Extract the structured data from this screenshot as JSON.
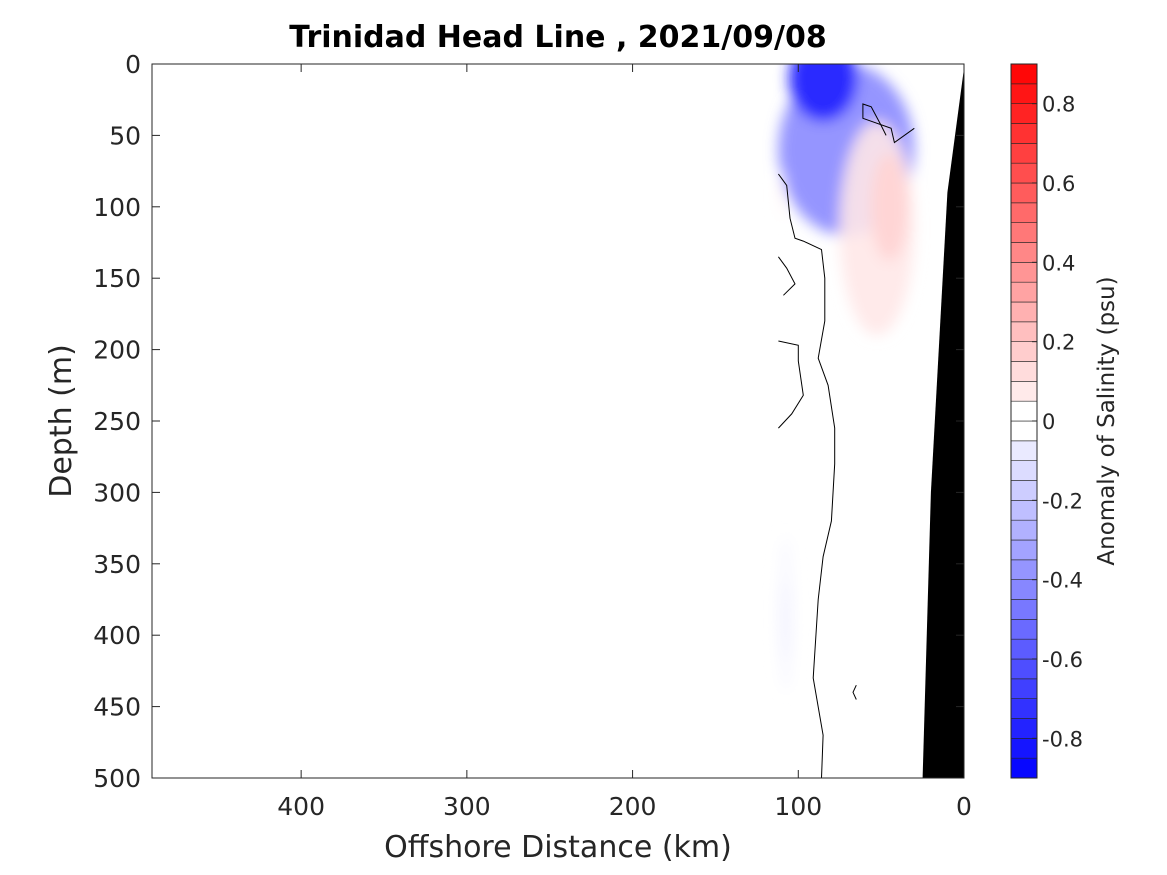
{
  "chart_data": {
    "type": "heatmap",
    "title": "Trinidad Head Line , 2021/09/08",
    "xlabel": "Offshore Distance (km)",
    "ylabel": "Depth (m)",
    "xlim": [
      490,
      0
    ],
    "ylim": [
      0,
      500
    ],
    "x_reversed": true,
    "y_reversed": true,
    "xticks": [
      400,
      300,
      200,
      100,
      0
    ],
    "xtick_labels": [
      "400",
      "300",
      "200",
      "100",
      "0"
    ],
    "yticks": [
      0,
      50,
      100,
      150,
      200,
      250,
      300,
      350,
      400,
      450,
      500
    ],
    "ytick_labels": [
      "0",
      "50",
      "100",
      "150",
      "200",
      "250",
      "300",
      "350",
      "400",
      "450",
      "500"
    ],
    "colorbar": {
      "label": "Anomaly of Salinity (psu)",
      "range": [
        -0.9,
        0.9
      ],
      "level_step": 0.05,
      "ticks": [
        0.8,
        0.6,
        0.4,
        0.2,
        0,
        -0.2,
        -0.4,
        -0.6,
        -0.8
      ],
      "tick_labels": [
        "0.8",
        "0.6",
        "0.4",
        "0.2",
        "0",
        "-0.2",
        "-0.4",
        "-0.6",
        "-0.8"
      ],
      "colormap": "blue-white-red",
      "low_color": "#0000ff",
      "high_color": "#ff0000"
    },
    "regions": [
      {
        "name": "surface fresh anomaly",
        "sign": "negative",
        "x_range_km": [
          30,
          112
        ],
        "depth_range_m": [
          0,
          120
        ],
        "peak_value": -0.75,
        "peak_location": {
          "x_km": 85,
          "depth_m": 10
        }
      },
      {
        "name": "subsurface salty anomaly",
        "sign": "positive",
        "x_range_km": [
          30,
          75
        ],
        "depth_range_m": [
          40,
          190
        ],
        "peak_value": 0.15,
        "peak_location": {
          "x_km": 45,
          "depth_m": 100
        }
      },
      {
        "name": "weak nearshore salty patch",
        "sign": "positive",
        "x_range_km": [
          108,
          112
        ],
        "depth_range_m": [
          75,
          110
        ],
        "peak_value": 0.05,
        "peak_location": {
          "x_km": 110,
          "depth_m": 90
        }
      },
      {
        "name": "deep weak fresh patch",
        "sign": "negative",
        "x_range_km": [
          103,
          112
        ],
        "depth_range_m": [
          330,
          440
        ],
        "peak_value": -0.05,
        "peak_location": {
          "x_km": 108,
          "depth_m": 390
        }
      }
    ],
    "zero_contours": [
      {
        "points": [
          [
            65,
            435
          ],
          [
            67,
            440
          ],
          [
            65,
            445
          ]
        ]
      },
      {
        "points": [
          [
            112,
            135
          ],
          [
            107,
            143
          ],
          [
            102,
            154
          ],
          [
            109,
            162
          ]
        ]
      },
      {
        "points": [
          [
            112,
            194
          ],
          [
            100,
            197
          ],
          [
            100,
            208
          ],
          [
            97,
            232
          ],
          [
            104,
            245
          ],
          [
            112,
            255
          ]
        ]
      },
      {
        "points": [
          [
            112,
            77
          ],
          [
            107,
            85
          ],
          [
            105,
            108
          ],
          [
            102,
            122
          ],
          [
            97,
            124
          ],
          [
            86,
            130
          ],
          [
            84,
            150
          ],
          [
            84,
            180
          ],
          [
            88,
            206
          ],
          [
            82,
            225
          ],
          [
            78,
            255
          ],
          [
            78,
            280
          ],
          [
            80,
            320
          ],
          [
            85,
            345
          ],
          [
            88,
            375
          ],
          [
            91,
            430
          ],
          [
            85,
            470
          ],
          [
            86,
            500
          ]
        ]
      },
      {
        "points": [
          [
            47,
            50
          ],
          [
            50,
            43
          ],
          [
            56,
            30
          ],
          [
            61,
            28
          ],
          [
            61,
            38
          ],
          [
            44,
            45
          ],
          [
            42,
            55
          ],
          [
            30,
            45
          ]
        ]
      }
    ],
    "data_extent_km": [
      30,
      112
    ],
    "bathymetry": {
      "fill": "#000000",
      "seafloor_depth_at_km": [
        [
          0,
          3
        ],
        [
          10,
          90
        ],
        [
          20,
          300
        ],
        [
          25,
          500
        ]
      ]
    }
  }
}
